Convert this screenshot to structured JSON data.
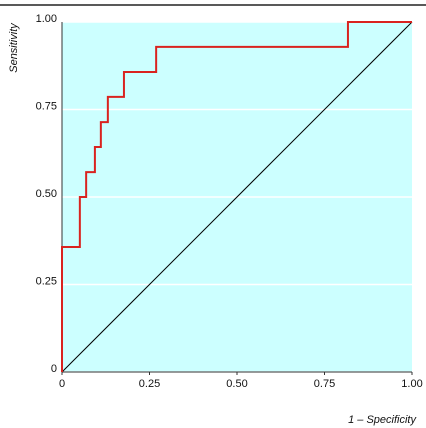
{
  "chart_data": {
    "type": "line",
    "x_label": "1 – Specificity",
    "y_label": "Sensitivity",
    "xlim": [
      0,
      1
    ],
    "ylim": [
      0,
      1
    ],
    "xticks": [
      0,
      0.25,
      {
        "value": 0.5,
        "label": "0.50"
      },
      0.75,
      {
        "value": 1,
        "label": "1.00"
      }
    ],
    "yticks": [
      0,
      0.25,
      {
        "value": 0.5,
        "label": "0.50"
      },
      0.75,
      {
        "value": 1,
        "label": "1.00"
      }
    ],
    "grid": true,
    "background": "#ccffff",
    "series": [
      {
        "color": "#d9231f",
        "x": [
          0,
          0,
          0.051,
          0.051,
          0.069,
          0.069,
          0.094,
          0.094,
          0.111,
          0.111,
          0.131,
          0.131,
          0.177,
          0.177,
          0.269,
          0.269,
          0.817,
          0.817,
          1
        ],
        "values": [
          0,
          0.357,
          0.357,
          0.5,
          0.5,
          0.571,
          0.571,
          0.643,
          0.643,
          0.714,
          0.714,
          0.786,
          0.786,
          0.857,
          0.857,
          0.929,
          0.929,
          1,
          1
        ]
      },
      {
        "color": "#000000",
        "x": [
          0,
          1
        ],
        "values": [
          0,
          1
        ]
      }
    ]
  }
}
